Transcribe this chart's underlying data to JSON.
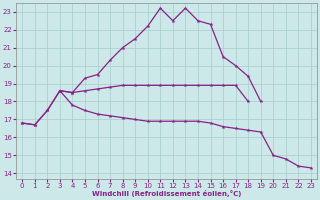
{
  "x": [
    0,
    1,
    2,
    3,
    4,
    5,
    6,
    7,
    8,
    9,
    10,
    11,
    12,
    13,
    14,
    15,
    16,
    17,
    18,
    19,
    20,
    21,
    22,
    23
  ],
  "line1": [
    16.8,
    16.7,
    17.5,
    18.6,
    18.5,
    19.3,
    19.5,
    20.3,
    21.0,
    21.5,
    22.2,
    23.2,
    22.5,
    23.2,
    22.5,
    22.3,
    20.5,
    20.0,
    19.4,
    18.0,
    null,
    null,
    null,
    null
  ],
  "line2": [
    null,
    null,
    null,
    18.6,
    18.5,
    18.6,
    18.7,
    18.8,
    18.9,
    18.9,
    18.9,
    18.9,
    18.9,
    18.9,
    18.9,
    18.9,
    18.9,
    18.9,
    18.0,
    null,
    null,
    null,
    null,
    null
  ],
  "line3": [
    16.8,
    16.7,
    17.5,
    18.6,
    17.8,
    17.5,
    17.3,
    17.2,
    17.1,
    17.0,
    16.9,
    16.9,
    16.9,
    16.9,
    16.9,
    16.8,
    16.6,
    16.5,
    16.4,
    16.3,
    15.0,
    14.8,
    14.4,
    14.3
  ],
  "line4": [
    16.8,
    null,
    null,
    null,
    null,
    null,
    null,
    null,
    null,
    null,
    null,
    null,
    null,
    null,
    null,
    null,
    null,
    null,
    null,
    16.3,
    15.0,
    14.8,
    14.4,
    14.3
  ],
  "line_color": "#882288",
  "bg_color": "#cce8e8",
  "grid_color": "#a8cccc",
  "ylim": [
    13.7,
    23.5
  ],
  "xlim": [
    -0.5,
    23.5
  ],
  "yticks": [
    14,
    15,
    16,
    17,
    18,
    19,
    20,
    21,
    22,
    23
  ],
  "xlabel": "Windchill (Refroidissement éolien,°C)"
}
